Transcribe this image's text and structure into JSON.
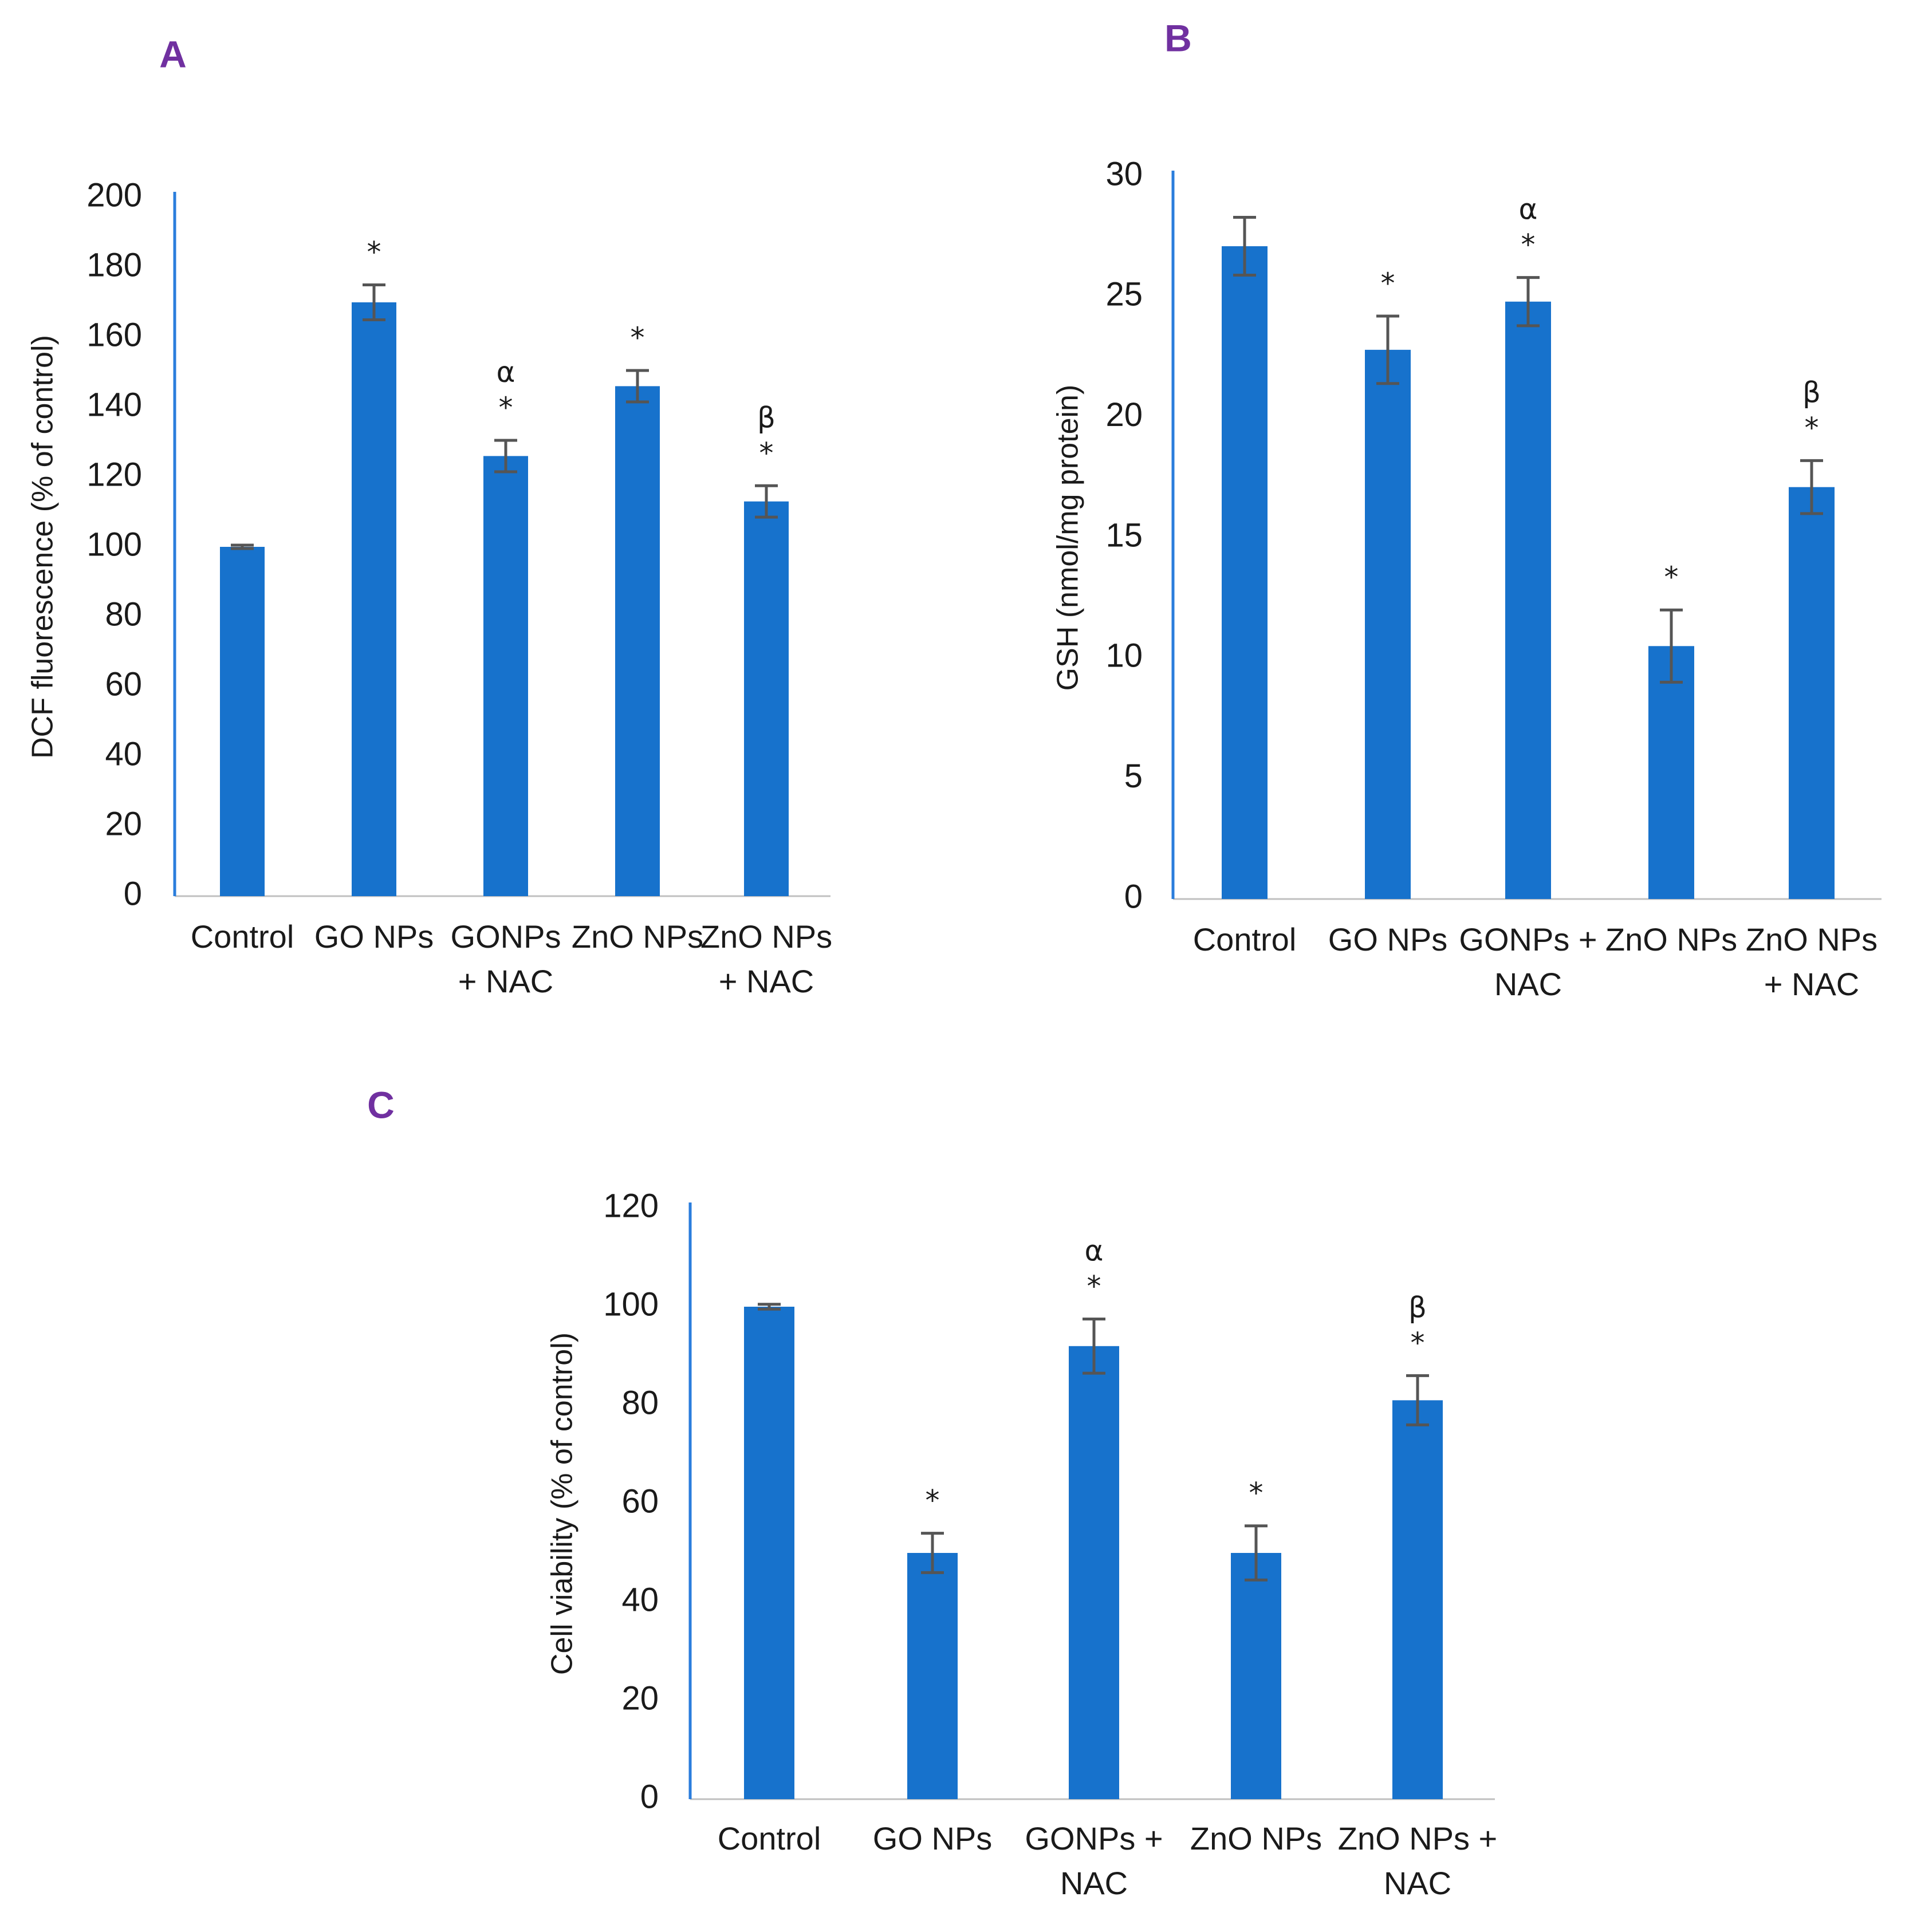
{
  "colors": {
    "bar": "#1772CC",
    "axis_line": "#2A7DDC",
    "baseline": "#C0C0C0",
    "error_bar": "#555555",
    "panel_letter": "#7030A0",
    "text": "#1a1a1a"
  },
  "chart_data": [
    {
      "panel": "A",
      "type": "bar",
      "categories": [
        [
          "Control"
        ],
        [
          "GO NPs"
        ],
        [
          "GONPs",
          "+ NAC"
        ],
        [
          "ZnO NPs"
        ],
        [
          "ZnO NPs",
          "+ NAC"
        ]
      ],
      "values": [
        100,
        170,
        126,
        146,
        113
      ],
      "errors": [
        0.5,
        5,
        4.5,
        4.5,
        4.5
      ],
      "significance": [
        [],
        [
          "*"
        ],
        [
          "α",
          "*"
        ],
        [
          "*"
        ],
        [
          "β",
          "*"
        ]
      ],
      "xlabel": "",
      "ylabel": "DCF fluorescence (% of control)",
      "ylim": [
        0,
        200
      ],
      "yticks": [
        0,
        20,
        40,
        60,
        80,
        100,
        120,
        140,
        160,
        180,
        200
      ],
      "grid": false
    },
    {
      "panel": "B",
      "type": "bar",
      "categories": [
        [
          "Control"
        ],
        [
          "GO NPs"
        ],
        [
          "GONPs +",
          "NAC"
        ],
        [
          "ZnO NPs"
        ],
        [
          "ZnO NPs",
          "+ NAC"
        ]
      ],
      "values": [
        27.1,
        22.8,
        24.8,
        10.5,
        17.1
      ],
      "errors": [
        1.2,
        1.4,
        1.0,
        1.5,
        1.1
      ],
      "significance": [
        [],
        [
          "*"
        ],
        [
          "α",
          "*"
        ],
        [
          "*"
        ],
        [
          "β",
          "*"
        ]
      ],
      "xlabel": "",
      "ylabel": "GSH (nmol/mg protein)",
      "ylim": [
        0,
        30
      ],
      "yticks": [
        0,
        5,
        10,
        15,
        20,
        25,
        30
      ],
      "grid": false
    },
    {
      "panel": "C",
      "type": "bar",
      "categories": [
        [
          "Control"
        ],
        [
          "GO NPs"
        ],
        [
          "GONPs +",
          "NAC"
        ],
        [
          "ZnO NPs"
        ],
        [
          "ZnO NPs +",
          "NAC"
        ]
      ],
      "values": [
        100,
        50,
        92,
        50,
        81
      ],
      "errors": [
        0.5,
        4,
        5.5,
        5.5,
        5
      ],
      "significance": [
        [],
        [
          "*"
        ],
        [
          "α",
          "*"
        ],
        [
          "*"
        ],
        [
          "β",
          "*"
        ]
      ],
      "xlabel": "",
      "ylabel": "Cell viability (% of control)",
      "ylim": [
        0,
        120
      ],
      "yticks": [
        0,
        20,
        40,
        60,
        80,
        100,
        120
      ],
      "grid": false
    }
  ]
}
